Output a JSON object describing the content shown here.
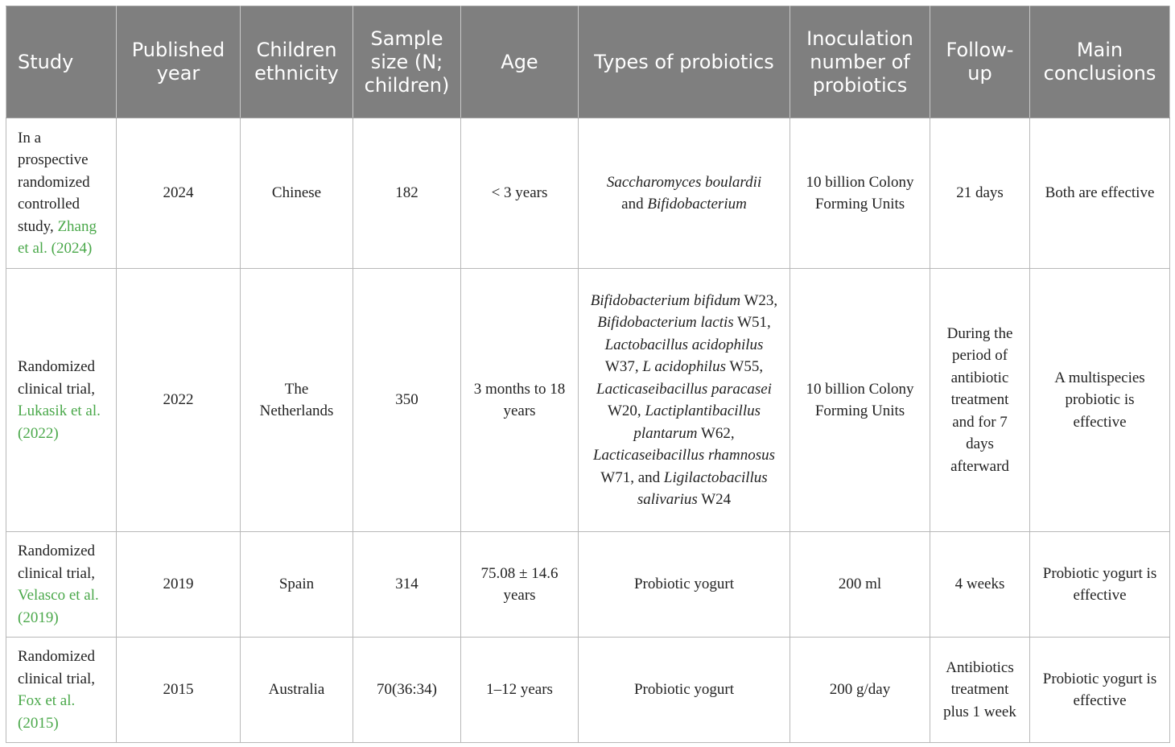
{
  "headers": [
    "Study",
    "Published year",
    "Children ethnicity",
    "Sample size (N; children)",
    "Age",
    "Types of probiotics",
    "Inoculation number of probiotics",
    "Follow-up",
    "Main conclusions"
  ],
  "rows": [
    {
      "study_text": "In a prospective randomized controlled study,",
      "citation": "Zhang et al. (2024)",
      "year": "2024",
      "ethnicity": "Chinese",
      "sample": "182",
      "age": "< 3 years",
      "probiotics_a": "Saccharomyces boulardii",
      "probiotics_b": "and",
      "probiotics_c": "Bifidobacterium",
      "inoculation": "10 billion Colony Forming Units",
      "followup": "21 days",
      "conclusion": "Both are effective"
    },
    {
      "study_text": "Randomized clinical trial,",
      "citation": "Lukasik et al. (2022)",
      "year": "2022",
      "ethnicity": "The Netherlands",
      "sample": "350",
      "age": "3 months to 18 years",
      "strains": [
        {
          "name": "Bifidobacterium bifidum",
          "code": " W23, "
        },
        {
          "name": "Bifidobacterium lactis",
          "code": " W51, "
        },
        {
          "name": "Lactobacillus acidophilus",
          "code": " W37, "
        },
        {
          "name": "L acidophilus",
          "code": " W55, "
        },
        {
          "name": "Lacticaseibacillus paracasei",
          "code": " W20, "
        },
        {
          "name": "Lactiplantibacillus plantarum",
          "code": " W62, "
        },
        {
          "name": "Lacticaseibacillus rhamnosus",
          "code": " W71, and "
        },
        {
          "name": "Ligilactobacillus salivarius",
          "code": " W24"
        }
      ],
      "inoculation": "10 billion Colony Forming Units",
      "followup": "During the period of antibiotic treatment and for 7 days afterward",
      "conclusion": "A multispecies probiotic is effective"
    },
    {
      "study_text": "Randomized clinical trial,",
      "citation": "Velasco et al. (2019)",
      "year": "2019",
      "ethnicity": "Spain",
      "sample": "314",
      "age": "75.08 ± 14.6 years",
      "probiotics": "Probiotic yogurt",
      "inoculation": "200 ml",
      "followup": "4 weeks",
      "conclusion": "Probiotic yogurt is effective"
    },
    {
      "study_text": "Randomized clinical trial,",
      "citation": "Fox et al. (2015)",
      "year": "2015",
      "ethnicity": "Australia",
      "sample": "70(36:34)",
      "age": "1–12 years",
      "probiotics": "Probiotic yogurt",
      "inoculation": "200 g/day",
      "followup": "Antibiotics treatment plus 1 week",
      "conclusion": "Probiotic yogurt is effective"
    }
  ],
  "colors": {
    "header_bg": "#7f7f7f",
    "citation": "#4aa84a"
  }
}
